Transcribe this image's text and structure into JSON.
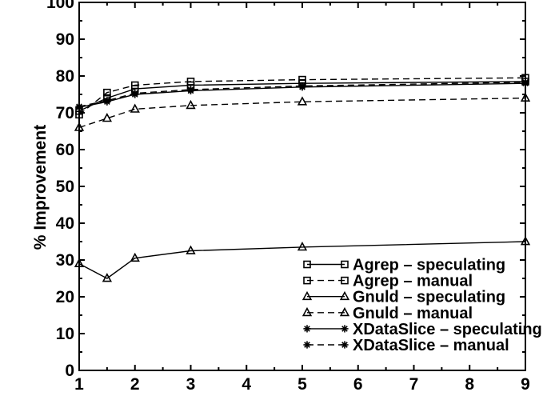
{
  "page": {
    "background_color": "#ffffff"
  },
  "chart_data": {
    "type": "line",
    "title": "",
    "xlabel": "",
    "ylabel": "% Improvement",
    "xlim": [
      1,
      9
    ],
    "ylim": [
      0,
      100
    ],
    "x_major_ticks": [
      1,
      2,
      3,
      4,
      5,
      6,
      7,
      8,
      9
    ],
    "x_minor_tick_step": 0.5,
    "y_major_ticks": [
      0,
      10,
      20,
      30,
      40,
      50,
      60,
      70,
      80,
      90,
      100
    ],
    "y_minor_tick_step": 5,
    "grid": false,
    "legend_position": "bottom-right-inside",
    "foreground_color": "#000000",
    "background_color": "#ffffff",
    "x": [
      1,
      1.5,
      2,
      3,
      5,
      9
    ],
    "series": [
      {
        "name": "Agrep – speculating",
        "marker": "square",
        "line_style": "solid",
        "values": [
          70.5,
          74,
          76.5,
          77.5,
          78,
          78.5
        ]
      },
      {
        "name": "Agrep – manual",
        "marker": "square",
        "line_style": "dashed",
        "values": [
          69.5,
          75.5,
          77.5,
          78.5,
          79,
          79.5
        ]
      },
      {
        "name": "Gnuld – speculating",
        "marker": "triangle",
        "line_style": "solid",
        "values": [
          29,
          25,
          30.5,
          32.5,
          33.5,
          35
        ]
      },
      {
        "name": "Gnuld – manual",
        "marker": "triangle",
        "line_style": "dashed",
        "values": [
          66,
          68.5,
          71,
          72,
          73,
          74
        ]
      },
      {
        "name": "XDataSlice – speculating",
        "marker": "asterisk",
        "line_style": "solid",
        "values": [
          71.5,
          73,
          75,
          76,
          77,
          78
        ]
      },
      {
        "name": "XDataSlice – manual",
        "marker": "asterisk",
        "line_style": "dashed",
        "values": [
          71.7,
          73.3,
          75.3,
          76.3,
          77.3,
          78.3
        ]
      }
    ]
  }
}
